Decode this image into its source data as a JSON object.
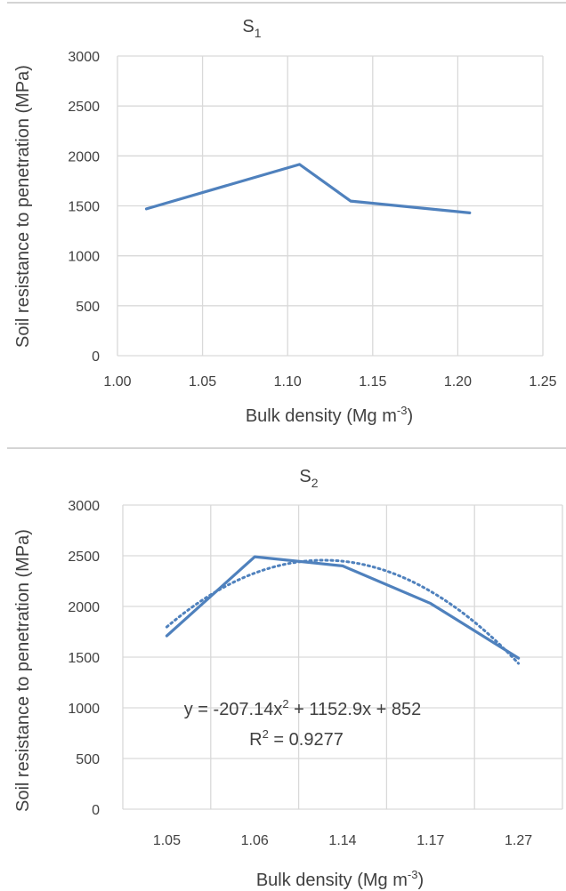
{
  "chart_data": [
    {
      "type": "line",
      "title": "S",
      "title_subscript": "1",
      "xlabel": "Bulk density (Mg m",
      "xlabel_sup": "-3",
      "xlabel_end": ")",
      "ylabel": "Soil resistance to penetration (MPa)",
      "x_axis": "numeric",
      "xlim": [
        1.0,
        1.25
      ],
      "xticks": [
        "1.00",
        "1.05",
        "1.10",
        "1.15",
        "1.20",
        "1.25"
      ],
      "ylim": [
        0,
        3000
      ],
      "yticks": [
        "0",
        "500",
        "1000",
        "1500",
        "2000",
        "2500",
        "3000"
      ],
      "grid": true,
      "series": [
        {
          "color": "#4f81bd",
          "x": [
            1.017,
            1.107,
            1.137,
            1.207
          ],
          "y": [
            1470,
            1915,
            1548,
            1430
          ]
        }
      ]
    },
    {
      "type": "line",
      "title": "S",
      "title_subscript": "2",
      "xlabel": "Bulk density (Mg m",
      "xlabel_sup": "-3",
      "xlabel_end": ")",
      "ylabel": "Soil resistance to penetration (MPa)",
      "x_axis": "category",
      "categories": [
        "1.05",
        "1.06",
        "1.14",
        "1.17",
        "1.27"
      ],
      "ylim": [
        0,
        3000
      ],
      "yticks": [
        "0",
        "500",
        "1000",
        "1500",
        "2000",
        "2500",
        "3000"
      ],
      "grid": true,
      "series": [
        {
          "color": "#4f81bd",
          "values": [
            1710,
            2490,
            2400,
            2030,
            1490
          ]
        }
      ],
      "trendline": {
        "type": "polynomial-2",
        "style": "dotted",
        "color": "#4f81bd",
        "coefficients": [
          -207.14,
          1152.9,
          852
        ],
        "equation_parts": [
          "y = -207.14x",
          "2",
          " + 1152.9x + 852"
        ],
        "r2_parts": [
          "R",
          "2",
          " = 0.9277"
        ]
      }
    }
  ]
}
